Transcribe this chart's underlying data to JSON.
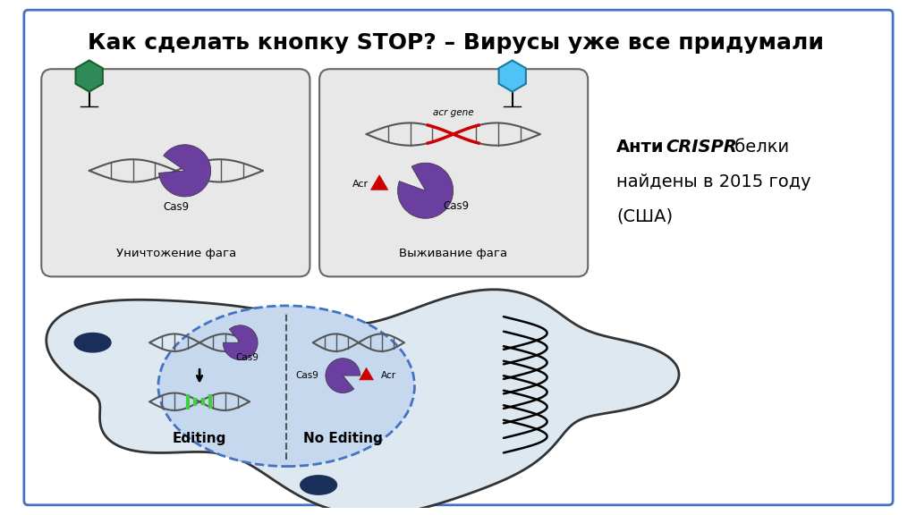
{
  "title": "Как сделать кнопку STOP? – Вирусы уже все придумали",
  "title_fontsize": 18,
  "bg_color": "#ffffff",
  "border_color": "#4472c4",
  "box1_label": "Уничтожение фага",
  "box2_label": "Выживание фага",
  "acr_gene_label": "acr gene",
  "cas9_label": "Cas9",
  "acr_label": "Acr",
  "editing_label": "Editing",
  "no_editing_label": "No Editing",
  "purple_color": "#6B3FA0",
  "green_hex_color": "#2E8B57",
  "blue_hex_color": "#4FC3F7",
  "dark_blue_color": "#1a2e5a",
  "red_color": "#cc0000",
  "box_bg": "#e8e8e8",
  "dna_color": "#555555",
  "green_insert": "#44cc44",
  "cell_outer_fill": "#dde8f0",
  "cell_inner_fill": "#c5d8ed",
  "anti_bold": "Анти",
  "anti_crispr": "CRISPR",
  "anti_rest": " белки",
  "anti_line2": "найдены в 2015 году",
  "anti_line3": "(США)"
}
